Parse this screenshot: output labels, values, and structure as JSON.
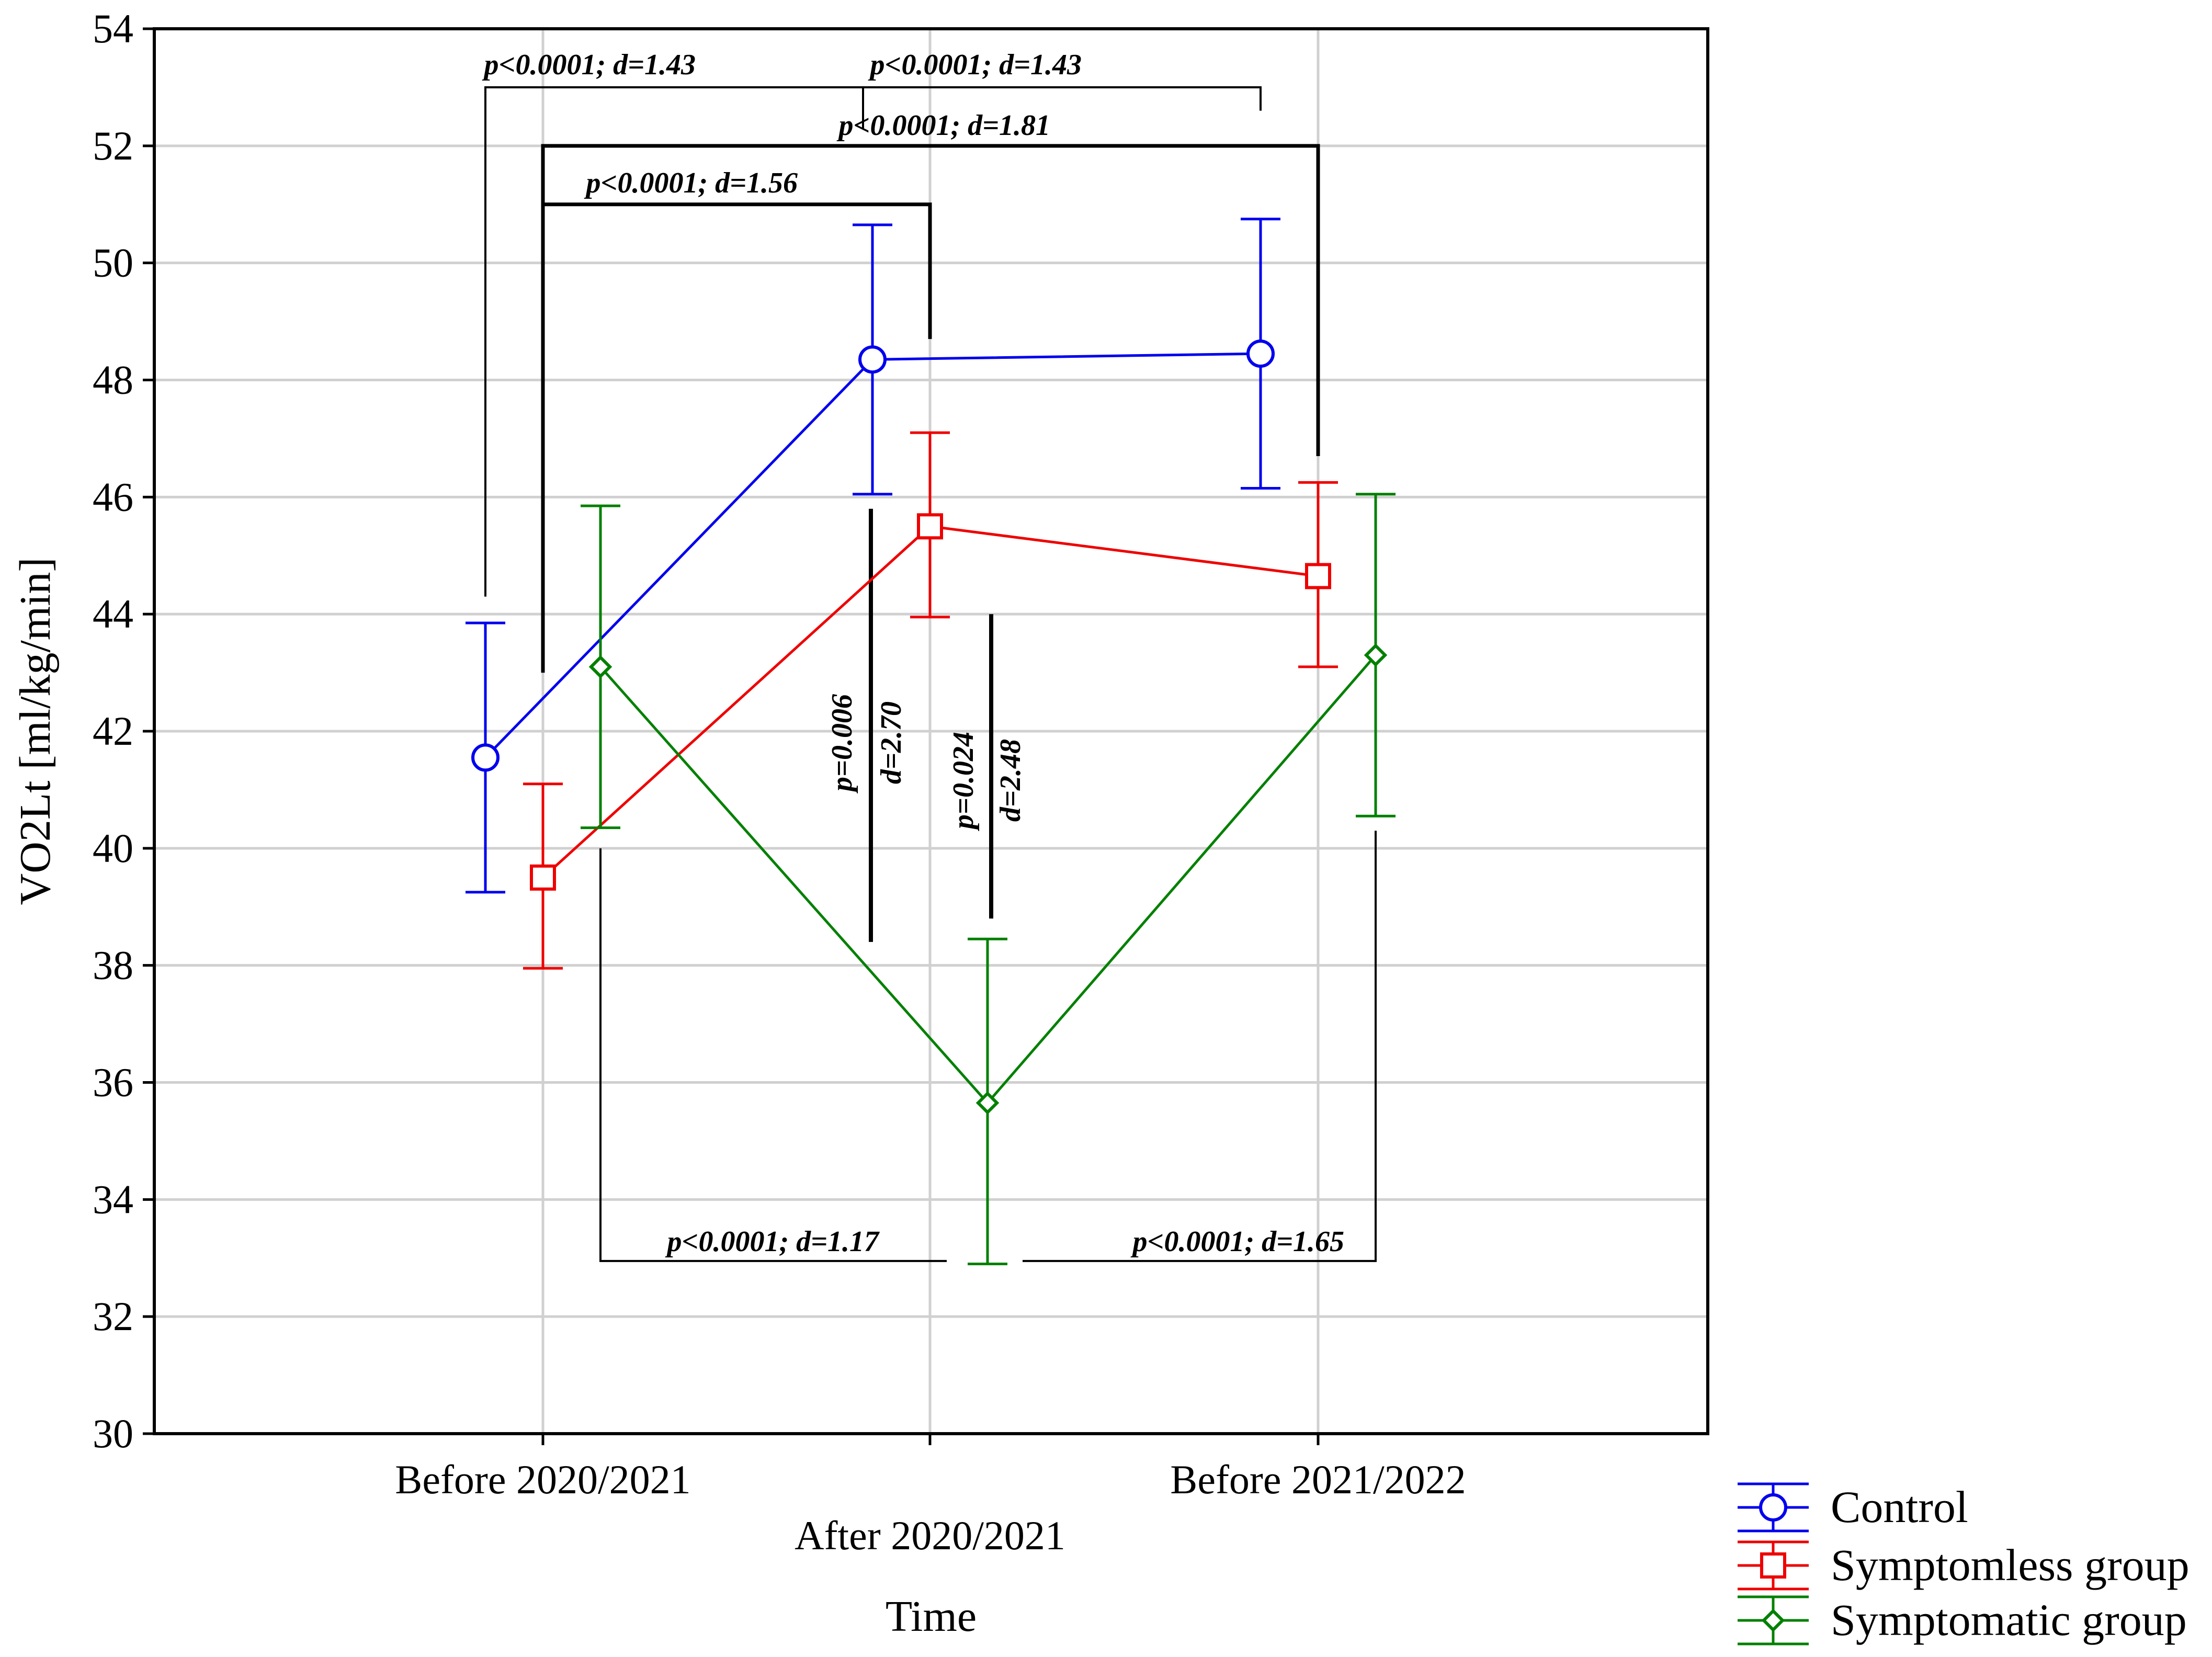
{
  "chart_data": {
    "type": "line",
    "xlabel": "Time",
    "ylabel": "VO2Lt [ml/kg/min]",
    "ylim": [
      30,
      54
    ],
    "yticks": [
      30,
      32,
      34,
      36,
      38,
      40,
      42,
      44,
      46,
      48,
      50,
      52,
      54
    ],
    "categories": [
      "Before 2020/2021",
      "After 2020/2021",
      "Before 2021/2022"
    ],
    "grid": true,
    "legend_position": "bottom-right outside plot",
    "error_bars": true,
    "series": [
      {
        "name": "Control",
        "color": "#0000ee",
        "marker": "circle",
        "values": [
          41.55,
          48.35,
          48.45
        ],
        "lower": [
          39.25,
          46.05,
          46.15
        ],
        "upper": [
          43.85,
          50.65,
          50.75
        ]
      },
      {
        "name": "Symptomless group",
        "color": "#ee0000",
        "marker": "square",
        "values": [
          39.5,
          45.5,
          44.65
        ],
        "lower": [
          37.95,
          43.95,
          43.1
        ],
        "upper": [
          41.1,
          47.1,
          46.25
        ]
      },
      {
        "name": "Symptomatic group",
        "color": "#008000",
        "marker": "diamond",
        "values": [
          43.1,
          35.65,
          43.3
        ],
        "lower": [
          40.35,
          32.9,
          40.55
        ],
        "upper": [
          45.85,
          38.45,
          46.05
        ]
      }
    ],
    "annotations": {
      "ctrl_b1_a1": "p<0.0001; d=1.43",
      "ctrl_a1_b2": "p<0.0001; d=1.43",
      "sless_b1_b2": "p<0.0001; d=1.81",
      "sless_b1_a1": "p<0.0001; d=1.56",
      "a1_ctrl_symp_p": "p=0.006",
      "a1_ctrl_symp_d": "d=2.70",
      "a1_sless_symp_p": "p=0.024",
      "a1_sless_symp_d": "d=2.48",
      "symp_b1_a1": "p<0.0001; d=1.17",
      "symp_a1_b2": "p<0.0001; d=1.65"
    }
  }
}
